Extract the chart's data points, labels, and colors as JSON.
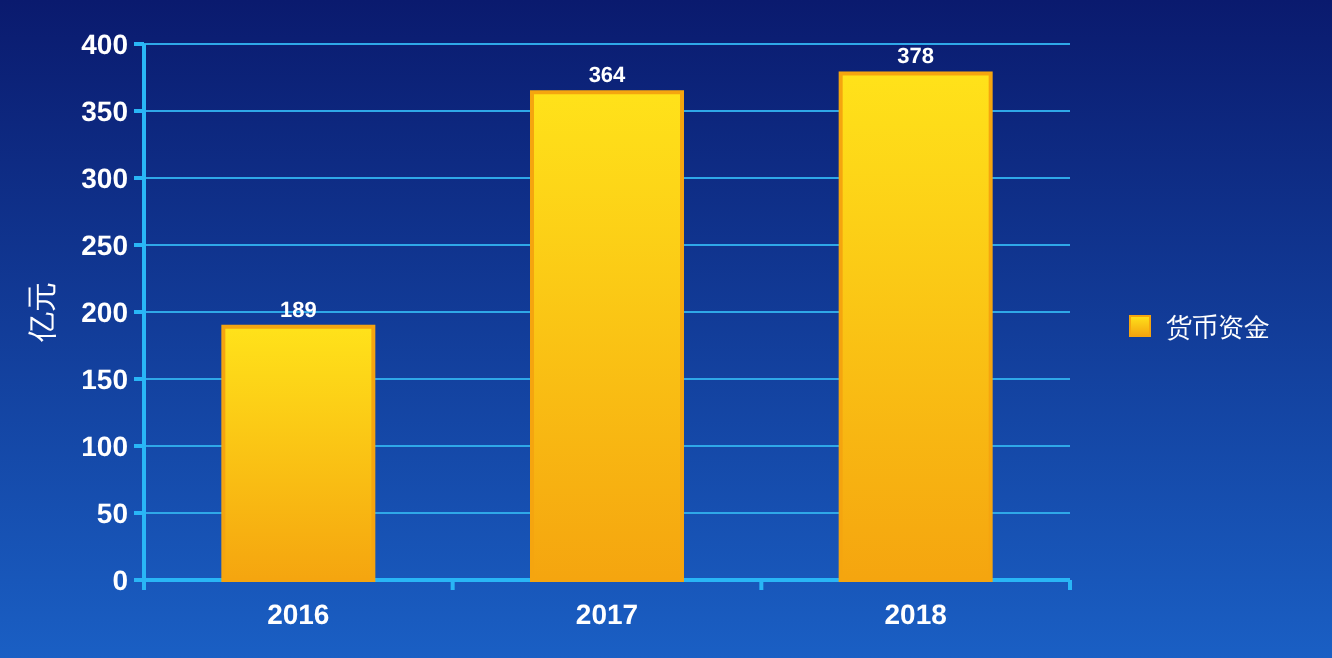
{
  "chart_data": {
    "type": "bar",
    "ylabel": "亿元",
    "categories": [
      "2016",
      "2017",
      "2018"
    ],
    "series": [
      {
        "name": "货币资金",
        "color": "#f5a50f",
        "values": [
          189,
          364,
          378
        ]
      }
    ],
    "ylim": [
      0,
      400
    ],
    "yticks": [
      0,
      50,
      100,
      150,
      200,
      250,
      300,
      350,
      400
    ],
    "grid": "y",
    "legend": "right",
    "data_labels": true
  }
}
